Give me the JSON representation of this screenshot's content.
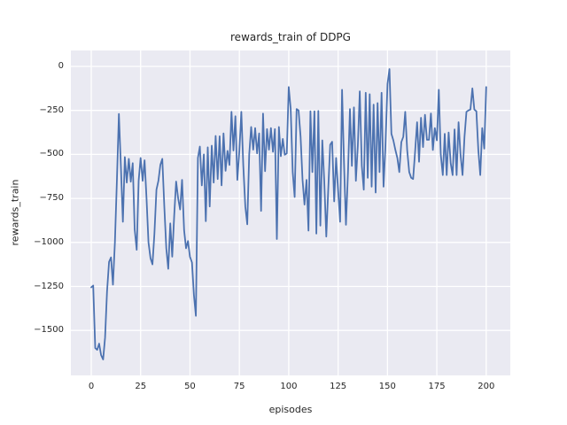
{
  "chart_data": {
    "type": "line",
    "title": "rewards_train of DDPG",
    "xlabel": "episodes",
    "ylabel": "rewards_train",
    "x_ticks": [
      0,
      25,
      50,
      75,
      100,
      125,
      150,
      175,
      200
    ],
    "x_tick_labels": [
      "0",
      "25",
      "50",
      "75",
      "100",
      "125",
      "150",
      "175",
      "200"
    ],
    "y_ticks": [
      0,
      -250,
      -500,
      -750,
      -1000,
      -1250,
      -1500
    ],
    "y_tick_labels": [
      "0",
      "−250",
      "−500",
      "−750",
      "−1000",
      "−1250",
      "−1500"
    ],
    "xlim": [
      -10.4,
      212
    ],
    "ylim": [
      -1755,
      90
    ],
    "grid": true,
    "legend": "none",
    "style": {
      "figure_background": "#ffffff",
      "axes_background": "#eaeaf2",
      "grid_color": "#ffffff",
      "line_color": "#4c72b0",
      "text_color": "#262626"
    },
    "series": [
      {
        "name": "rewards_train",
        "x_start": 0,
        "x_step": 1,
        "values": [
          -1255,
          -1245,
          -1600,
          -1610,
          -1575,
          -1640,
          -1665,
          -1540,
          -1280,
          -1110,
          -1085,
          -1240,
          -1000,
          -640,
          -270,
          -560,
          -883,
          -515,
          -660,
          -525,
          -655,
          -550,
          -925,
          -1042,
          -650,
          -520,
          -650,
          -533,
          -750,
          -1000,
          -1090,
          -1125,
          -950,
          -700,
          -650,
          -560,
          -525,
          -800,
          -1033,
          -1150,
          -892,
          -1081,
          -850,
          -654,
          -750,
          -813,
          -645,
          -930,
          -1033,
          -992,
          -1081,
          -1114,
          -1300,
          -1417,
          -520,
          -455,
          -676,
          -500,
          -880,
          -460,
          -796,
          -450,
          -660,
          -395,
          -640,
          -397,
          -676,
          -381,
          -593,
          -480,
          -560,
          -258,
          -478,
          -283,
          -645,
          -478,
          -258,
          -562,
          -796,
          -897,
          -500,
          -344,
          -473,
          -350,
          -494,
          -381,
          -821,
          -268,
          -595,
          -356,
          -473,
          -350,
          -485,
          -356,
          -981,
          -344,
          -510,
          -412,
          -502,
          -494,
          -117,
          -240,
          -600,
          -742,
          -242,
          -250,
          -400,
          -645,
          -785,
          -645,
          -933,
          -255,
          -600,
          -255,
          -950,
          -253,
          -905,
          -420,
          -650,
          -967,
          -700,
          -445,
          -428,
          -767,
          -520,
          -700,
          -883,
          -133,
          -550,
          -900,
          -600,
          -242,
          -565,
          -233,
          -650,
          -450,
          -142,
          -565,
          -700,
          -150,
          -633,
          -158,
          -683,
          -217,
          -717,
          -208,
          -600,
          -150,
          -683,
          -450,
          -100,
          -15,
          -383,
          -420,
          -475,
          -520,
          -600,
          -430,
          -400,
          -258,
          -475,
          -600,
          -633,
          -640,
          -480,
          -317,
          -542,
          -292,
          -458,
          -275,
          -417,
          -417,
          -267,
          -475,
          -350,
          -420,
          -133,
          -500,
          -617,
          -383,
          -617,
          -375,
          -550,
          -617,
          -358,
          -617,
          -317,
          -500,
          -617,
          -400,
          -258,
          -250,
          -245,
          -125,
          -245,
          -255,
          -475,
          -617,
          -350,
          -467,
          -117
        ]
      }
    ]
  }
}
